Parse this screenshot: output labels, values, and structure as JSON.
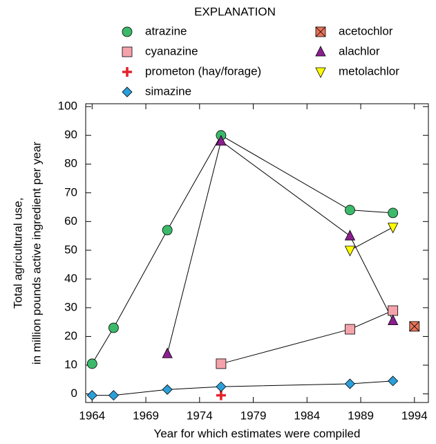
{
  "chart_data": {
    "type": "line",
    "legend_title": "EXPLANATION",
    "xlabel": "Year for which estimates were compiled",
    "ylabel": [
      "Total agricultural use,",
      "in million pounds active ingredient per year"
    ],
    "xlim": [
      1963.4,
      1995.3
    ],
    "ylim": [
      -3,
      101
    ],
    "xticks": [
      1964,
      1969,
      1974,
      1979,
      1984,
      1989,
      1994
    ],
    "yticks": [
      0,
      10,
      20,
      30,
      40,
      50,
      60,
      70,
      80,
      90,
      100
    ],
    "series": [
      {
        "name": "atrazine",
        "color": "#3cb96a",
        "marker": "circle",
        "x": [
          1964,
          1966,
          1971,
          1976,
          1988,
          1992
        ],
        "values": [
          10.5,
          23,
          57,
          90,
          64,
          63
        ]
      },
      {
        "name": "cyanazine",
        "color": "#f4a3ab",
        "marker": "square",
        "x": [
          1976,
          1988,
          1992
        ],
        "values": [
          10.5,
          22.5,
          29
        ]
      },
      {
        "name": "prometon (hay/forage)",
        "color": "#e3232c",
        "marker": "plus",
        "x": [
          1976
        ],
        "values": [
          -0.5
        ]
      },
      {
        "name": "simazine",
        "color": "#2b9fd9",
        "marker": "diamond",
        "x": [
          1964,
          1966,
          1971,
          1976,
          1988,
          1992
        ],
        "values": [
          -0.5,
          -0.5,
          1.5,
          2.5,
          3.5,
          4.5
        ]
      },
      {
        "name": "acetochlor",
        "color": "#e8735a",
        "marker": "squarex",
        "x": [
          1994
        ],
        "values": [
          23.5
        ]
      },
      {
        "name": "alachlor",
        "color": "#8b1f8f",
        "marker": "triangle",
        "x": [
          1971,
          1976,
          1988,
          1992
        ],
        "values": [
          14,
          88,
          55,
          25.5
        ]
      },
      {
        "name": "metolachlor",
        "color": "#ffff00",
        "marker": "triangledown",
        "x": [
          1988,
          1992
        ],
        "values": [
          50,
          58
        ]
      }
    ]
  }
}
